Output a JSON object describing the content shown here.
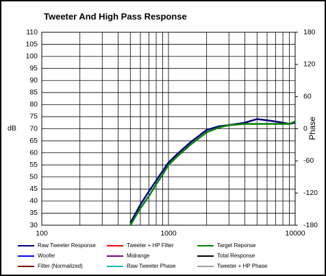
{
  "chart_data": {
    "type": "line",
    "title": "Tweeter  And High Pass Response",
    "ylabel": "dB",
    "y2label": "Phase",
    "x": [
      500,
      600,
      700,
      800,
      900,
      1000,
      1200,
      1500,
      2000,
      2500,
      3000,
      4000,
      5000,
      6000,
      7000,
      8000,
      9000,
      10000
    ],
    "xscale": "log",
    "xlim": [
      100,
      10000
    ],
    "xticks": [
      100,
      1000,
      10000
    ],
    "xgrid": [
      100,
      200,
      300,
      400,
      500,
      600,
      700,
      800,
      900,
      1000,
      2000,
      3000,
      4000,
      5000,
      6000,
      7000,
      8000,
      9000,
      10000
    ],
    "ylim": [
      30,
      110
    ],
    "yticks": [
      30,
      35,
      40,
      45,
      50,
      55,
      60,
      65,
      70,
      75,
      80,
      85,
      90,
      95,
      100,
      105,
      110
    ],
    "y2lim": [
      -180,
      180
    ],
    "y2ticks": [
      -180,
      -120,
      -60,
      0,
      60,
      120,
      180
    ],
    "grid": true,
    "series": [
      {
        "name": "Raw Tweeter Response",
        "color": "#000080",
        "values": [
          31,
          38.5,
          44,
          48.5,
          52.5,
          56,
          60,
          64.5,
          69.5,
          71,
          71.5,
          72.5,
          74,
          73.5,
          73,
          72.5,
          72,
          72.5
        ]
      },
      {
        "name": "Tweeter + HP Filter",
        "color": "#ff0000",
        "values": [
          null,
          null,
          null,
          null,
          null,
          null,
          null,
          null,
          null,
          null,
          null,
          null,
          null,
          null,
          null,
          null,
          null,
          null
        ]
      },
      {
        "name": "Target Reponse",
        "color": "#008000",
        "values": [
          30,
          37,
          42,
          47,
          51,
          55,
          59,
          63.5,
          68.5,
          70.5,
          71.5,
          72,
          72,
          72,
          72,
          72,
          72,
          73
        ]
      },
      {
        "name": "Woofer",
        "color": "#0000ff",
        "values": [
          null,
          null,
          null,
          null,
          null,
          null,
          null,
          null,
          null,
          null,
          null,
          null,
          null,
          null,
          null,
          null,
          null,
          null
        ]
      },
      {
        "name": "Midrange",
        "color": "#800080",
        "values": [
          null,
          null,
          null,
          null,
          null,
          null,
          null,
          null,
          null,
          null,
          null,
          null,
          null,
          null,
          null,
          null,
          null,
          null
        ]
      },
      {
        "name": "Total Response",
        "color": "#000000",
        "values": [
          null,
          null,
          null,
          null,
          null,
          null,
          null,
          null,
          null,
          null,
          null,
          null,
          null,
          null,
          null,
          null,
          null,
          null
        ]
      },
      {
        "name": "Filter (Normalized)",
        "color": "#800000",
        "values": [
          null,
          null,
          null,
          null,
          null,
          null,
          null,
          null,
          null,
          null,
          null,
          null,
          null,
          null,
          null,
          null,
          null,
          null
        ]
      },
      {
        "name": "Raw Tweeter Phase",
        "color": "#00c0c0",
        "values": [
          null,
          null,
          null,
          null,
          null,
          null,
          null,
          null,
          null,
          null,
          null,
          null,
          null,
          null,
          null,
          null,
          null,
          null
        ]
      },
      {
        "name": "Tweeter + HP Phase",
        "color": "#a0a0a0",
        "values": [
          null,
          null,
          null,
          null,
          null,
          null,
          null,
          null,
          null,
          null,
          null,
          null,
          null,
          null,
          null,
          null,
          null,
          null
        ]
      }
    ]
  }
}
